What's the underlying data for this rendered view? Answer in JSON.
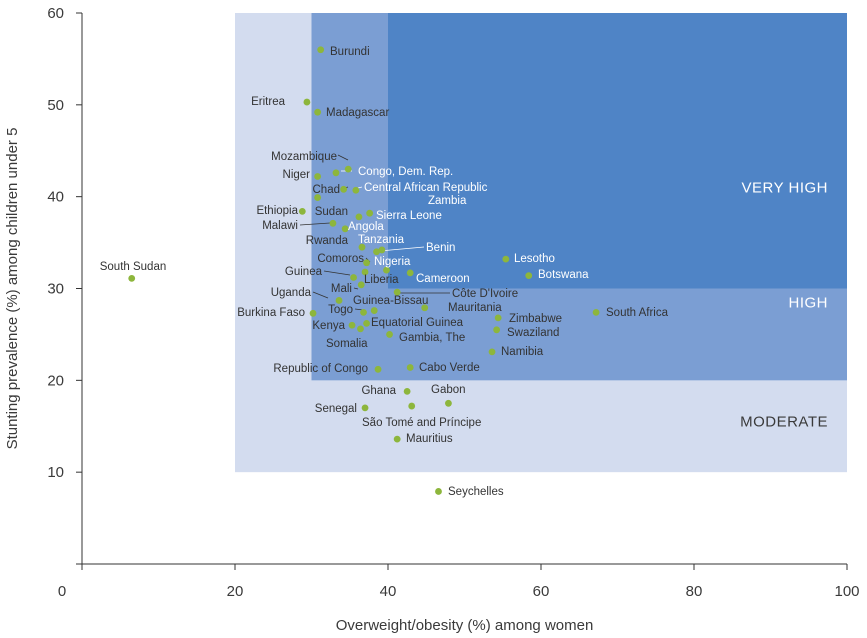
{
  "chart_data": {
    "type": "scatter",
    "title": "",
    "xlabel": "Overweight/obesity (%) among women",
    "ylabel": "Stunting prevalence (%) among children under 5",
    "xlim": [
      0,
      100
    ],
    "ylim": [
      0,
      60
    ],
    "x_ticks": [
      "0",
      "20",
      "40",
      "60",
      "80",
      "100"
    ],
    "y_ticks": [
      "10",
      "20",
      "30",
      "40",
      "50",
      "60"
    ],
    "grid": false,
    "point_color": "#8db63c",
    "zones": [
      {
        "label": "MODERATE",
        "x_range": [
          20,
          100
        ],
        "y_range": [
          10,
          60
        ],
        "color": "#d3dcef",
        "label_y": 15.5
      },
      {
        "label": "HIGH",
        "x_range": [
          30,
          100
        ],
        "y_range": [
          20,
          60
        ],
        "color": "#7b9ed3",
        "label_y": 28.5
      },
      {
        "label": "VERY HIGH",
        "x_range": [
          40,
          100
        ],
        "y_range": [
          30,
          60
        ],
        "color": "#4f84c6",
        "label_y": 41.0
      }
    ],
    "points": [
      {
        "name": "Burundi",
        "x": 31.2,
        "y": 56.0
      },
      {
        "name": "Eritrea",
        "x": 29.4,
        "y": 50.3
      },
      {
        "name": "Madagascar",
        "x": 30.8,
        "y": 49.2
      },
      {
        "name": "Mozambique",
        "x": 34.8,
        "y": 43.0
      },
      {
        "name": "Congo, Dem. Rep.",
        "x": 33.2,
        "y": 42.6
      },
      {
        "name": "Niger",
        "x": 30.8,
        "y": 42.2
      },
      {
        "name": "Chad",
        "x": 34.2,
        "y": 40.8
      },
      {
        "name": "Central African Republic",
        "x": 35.8,
        "y": 40.7
      },
      {
        "name": "Zambia",
        "x": 30.8,
        "y": 39.9
      },
      {
        "name": "Ethiopia",
        "x": 28.8,
        "y": 38.4
      },
      {
        "name": "Sudan",
        "x": 37.6,
        "y": 38.2
      },
      {
        "name": "Sierra Leone",
        "x": 36.2,
        "y": 37.8
      },
      {
        "name": "Malawi",
        "x": 32.8,
        "y": 37.1
      },
      {
        "name": "Angola",
        "x": 34.4,
        "y": 36.5
      },
      {
        "name": "Rwanda",
        "x": 36.6,
        "y": 34.5
      },
      {
        "name": "Tanzania",
        "x": 38.5,
        "y": 34.0
      },
      {
        "name": "Benin",
        "x": 39.2,
        "y": 34.2
      },
      {
        "name": "Comoros",
        "x": 37.2,
        "y": 32.8
      },
      {
        "name": "Nigeria",
        "x": 39.8,
        "y": 32.0
      },
      {
        "name": "Lesotho",
        "x": 55.4,
        "y": 33.2
      },
      {
        "name": "Guinea",
        "x": 35.5,
        "y": 31.2
      },
      {
        "name": "Cameroon",
        "x": 42.9,
        "y": 31.7
      },
      {
        "name": "Botswana",
        "x": 58.4,
        "y": 31.4
      },
      {
        "name": "Liberia",
        "x": 37.0,
        "y": 31.8
      },
      {
        "name": "Mali",
        "x": 36.5,
        "y": 30.4
      },
      {
        "name": "Côte D'Ivoire",
        "x": 41.2,
        "y": 29.6
      },
      {
        "name": "Uganda",
        "x": 33.6,
        "y": 28.7
      },
      {
        "name": "Guinea-Bissau",
        "x": 38.2,
        "y": 27.6
      },
      {
        "name": "Mauritania",
        "x": 44.8,
        "y": 27.9
      },
      {
        "name": "Togo",
        "x": 36.8,
        "y": 27.4
      },
      {
        "name": "Burkina Faso",
        "x": 30.2,
        "y": 27.3
      },
      {
        "name": "South Africa",
        "x": 67.2,
        "y": 27.4
      },
      {
        "name": "Zimbabwe",
        "x": 54.4,
        "y": 26.8
      },
      {
        "name": "Equatorial Guinea",
        "x": 37.2,
        "y": 26.2
      },
      {
        "name": "Kenya",
        "x": 35.3,
        "y": 26.0
      },
      {
        "name": "Swaziland",
        "x": 54.2,
        "y": 25.5
      },
      {
        "name": "Gambia, The",
        "x": 40.2,
        "y": 25.0
      },
      {
        "name": "Somalia",
        "x": 36.4,
        "y": 25.6
      },
      {
        "name": "Namibia",
        "x": 53.6,
        "y": 23.1
      },
      {
        "name": "Republic of Congo",
        "x": 38.7,
        "y": 21.2
      },
      {
        "name": "Cabo Verde",
        "x": 42.9,
        "y": 21.4
      },
      {
        "name": "Ghana",
        "x": 42.5,
        "y": 18.8
      },
      {
        "name": "Gabon",
        "x": 47.9,
        "y": 17.5
      },
      {
        "name": "Senegal",
        "x": 37.0,
        "y": 17.0
      },
      {
        "name": "São Tomé and Príncipe",
        "x": 43.1,
        "y": 17.2
      },
      {
        "name": "Mauritius",
        "x": 41.2,
        "y": 13.6
      },
      {
        "name": "Seychelles",
        "x": 46.6,
        "y": 7.9
      },
      {
        "name": "South Sudan",
        "x": 6.5,
        "y": 31.1
      }
    ]
  }
}
